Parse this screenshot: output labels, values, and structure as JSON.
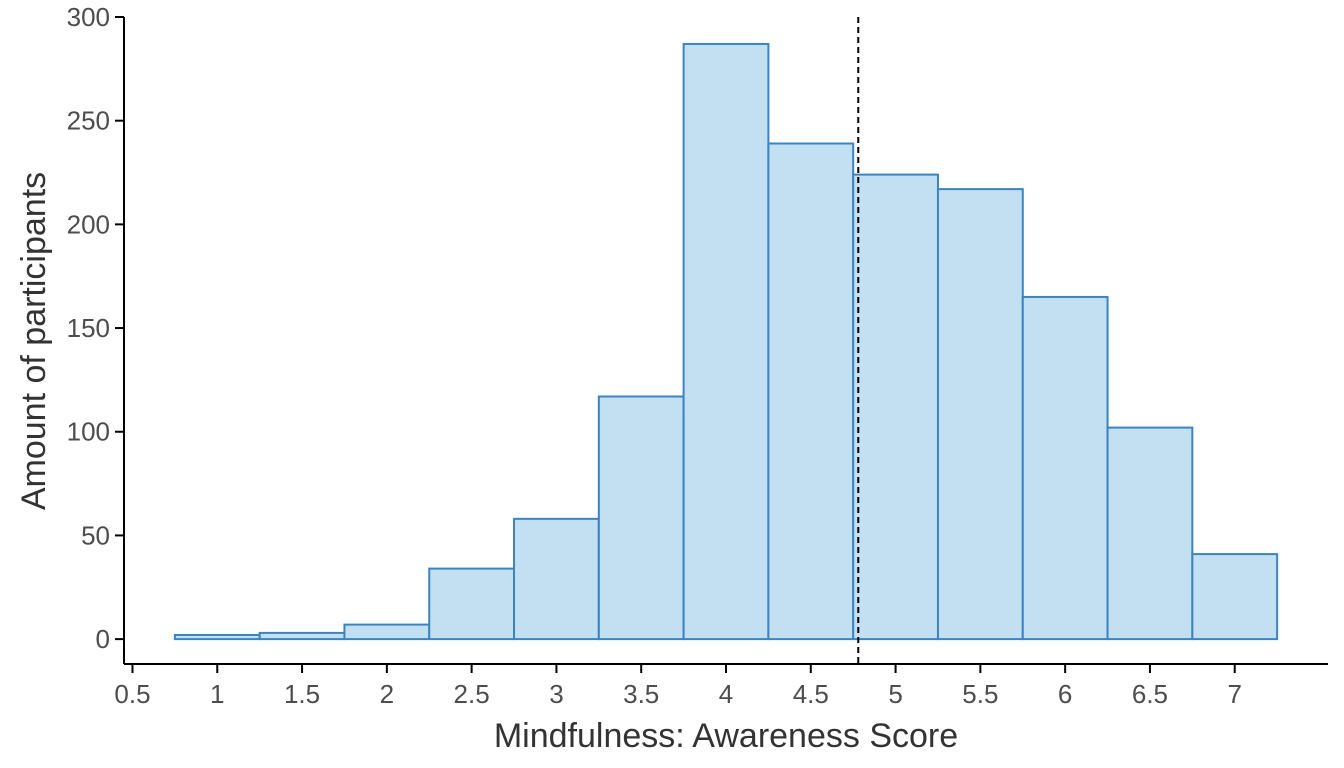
{
  "chart_data": {
    "type": "bar",
    "subtype": "histogram",
    "title": "",
    "xlabel": "Mindfulness: Awareness Score",
    "ylabel": "Amount of participants",
    "bin_width": 0.5,
    "bins": [
      {
        "start": 0.75,
        "end": 1.25,
        "count": 2
      },
      {
        "start": 1.25,
        "end": 1.75,
        "count": 3
      },
      {
        "start": 1.75,
        "end": 2.25,
        "count": 7
      },
      {
        "start": 2.25,
        "end": 2.75,
        "count": 34
      },
      {
        "start": 2.75,
        "end": 3.25,
        "count": 58
      },
      {
        "start": 3.25,
        "end": 3.75,
        "count": 117
      },
      {
        "start": 3.75,
        "end": 4.25,
        "count": 287
      },
      {
        "start": 4.25,
        "end": 4.75,
        "count": 239
      },
      {
        "start": 4.75,
        "end": 5.25,
        "count": 224
      },
      {
        "start": 5.25,
        "end": 5.75,
        "count": 217
      },
      {
        "start": 5.75,
        "end": 6.25,
        "count": 165
      },
      {
        "start": 6.25,
        "end": 6.75,
        "count": 102
      },
      {
        "start": 6.75,
        "end": 7.25,
        "count": 41
      }
    ],
    "reference_line": {
      "x": 4.78,
      "style": "dashed"
    },
    "xlim": [
      0.45,
      7.55
    ],
    "ylim": [
      -12,
      300
    ],
    "x_ticks": [
      {
        "value": 0.5,
        "label": "0.5"
      },
      {
        "value": 1,
        "label": "1"
      },
      {
        "value": 1.5,
        "label": "1.5"
      },
      {
        "value": 2,
        "label": "2"
      },
      {
        "value": 2.5,
        "label": "2.5"
      },
      {
        "value": 3,
        "label": "3"
      },
      {
        "value": 3.5,
        "label": "3.5"
      },
      {
        "value": 4,
        "label": "4"
      },
      {
        "value": 4.5,
        "label": "4.5"
      },
      {
        "value": 5,
        "label": "5"
      },
      {
        "value": 5.5,
        "label": "5.5"
      },
      {
        "value": 6,
        "label": "6"
      },
      {
        "value": 6.5,
        "label": "6.5"
      },
      {
        "value": 7,
        "label": "7"
      }
    ],
    "y_ticks": [
      {
        "value": 0,
        "label": "0"
      },
      {
        "value": 50,
        "label": "50"
      },
      {
        "value": 100,
        "label": "100"
      },
      {
        "value": 150,
        "label": "150"
      },
      {
        "value": 200,
        "label": "200"
      },
      {
        "value": 250,
        "label": "250"
      },
      {
        "value": 300,
        "label": "300"
      }
    ],
    "grid": false,
    "legend": "none",
    "colors": {
      "bar_fill": "#c3dff2",
      "bar_stroke": "#3a85c1",
      "axis": "#000000",
      "reference_line": "#000000"
    }
  }
}
